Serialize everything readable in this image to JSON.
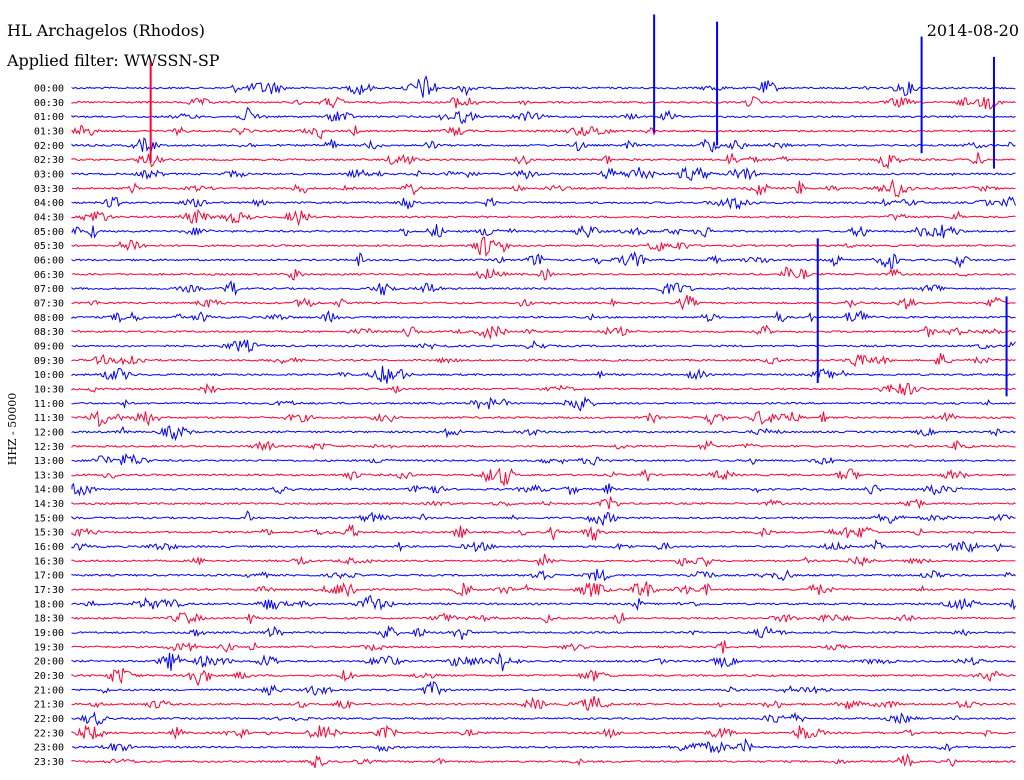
{
  "header": {
    "station": "HL Archagelos (Rhodos)",
    "filter": "Applied filter: WWSSN-SP",
    "date": "2014-08-20"
  },
  "chart_data": {
    "type": "line",
    "title": "HL Archagelos (Rhodos)",
    "subtitle": "Applied filter: WWSSN-SP",
    "ylabel": "HHZ - 50000",
    "date": "2014-08-20",
    "row_labels": [
      "00:00",
      "00:30",
      "01:00",
      "01:30",
      "02:00",
      "02:30",
      "03:00",
      "03:30",
      "04:00",
      "04:30",
      "05:00",
      "05:30",
      "06:00",
      "06:30",
      "07:00",
      "07:30",
      "08:00",
      "08:30",
      "09:00",
      "09:30",
      "10:00",
      "10:30",
      "11:00",
      "11:30",
      "12:00",
      "12:30",
      "13:00",
      "13:30",
      "14:00",
      "14:30",
      "15:00",
      "15:30",
      "16:00",
      "16:30",
      "17:00",
      "17:30",
      "18:00",
      "18:30",
      "19:00",
      "19:30",
      "20:00",
      "20:30",
      "21:00",
      "21:30",
      "22:00",
      "22:30",
      "23:00",
      "23:30"
    ],
    "series_colors": [
      "#0000ff",
      "#ff0033"
    ],
    "grid": false,
    "legend": "none",
    "large_events": [
      {
        "row": "00:30",
        "minute": 2.5,
        "note": "large spike"
      },
      {
        "row": "00:00",
        "minute": 18.5,
        "note": "large spike"
      },
      {
        "row": "00:00",
        "minute": 20.5,
        "note": "large spike"
      },
      {
        "row": "00:00",
        "minute": 27.0,
        "note": "large spike"
      },
      {
        "row": "01:00",
        "minute": 29.3,
        "note": "large spike"
      },
      {
        "row": "08:00",
        "minute": 23.7,
        "note": "spike"
      },
      {
        "row": "09:00",
        "minute": 29.7,
        "note": "spike"
      }
    ]
  }
}
